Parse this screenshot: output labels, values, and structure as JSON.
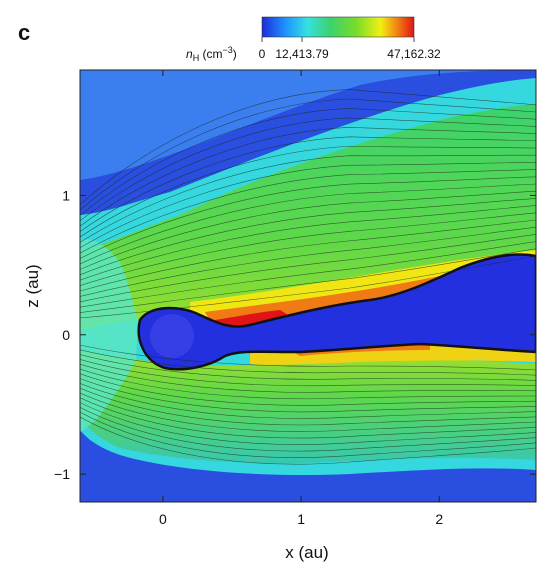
{
  "panel_label": "c",
  "chart_data": {
    "type": "heatmap",
    "title": "",
    "quantity": "n_H",
    "colorbar": {
      "label_symbol": "n",
      "label_subscript": "H",
      "label_units": "(cm",
      "label_exponent": "−3",
      "label_close": ")",
      "range": [
        0,
        47162.32
      ],
      "tick_values": [
        0,
        12413.79,
        47162.32
      ],
      "tick_labels": [
        "0",
        "12,413.79",
        "47,162.32"
      ],
      "colormap": [
        "#1f2bd8",
        "#1e90ff",
        "#36e0e0",
        "#3cd26e",
        "#78dc2a",
        "#f0f014",
        "#f07814",
        "#e01414"
      ],
      "position": "top"
    },
    "xlabel": "x (au)",
    "ylabel": "z (au)",
    "xlim": [
      -0.6,
      2.7
    ],
    "ylim": [
      -1.2,
      1.9
    ],
    "xticks": [
      0,
      1,
      2
    ],
    "xtick_labels": [
      "0",
      "1",
      "2"
    ],
    "yticks": [
      -1,
      0,
      1
    ],
    "ytick_labels": [
      "−1",
      "0",
      "1"
    ],
    "contours": true,
    "description_of_features": "dense disk midplane with low-density cavity near x=0 to 2.7 au"
  }
}
